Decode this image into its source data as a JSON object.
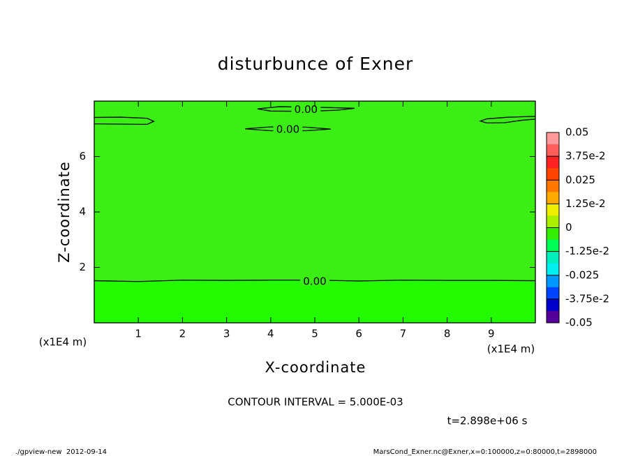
{
  "chart_data": {
    "type": "contour",
    "title": "disturbunce of Exner",
    "x_label": "X-coordinate",
    "y_label": "Z-coordinate",
    "x_unit": "(x1E4 m)",
    "y_unit": "(x1E4 m)",
    "xlim": [
      0,
      10
    ],
    "ylim": [
      0,
      8
    ],
    "xticks": [
      1,
      2,
      3,
      4,
      5,
      6,
      7,
      8,
      9
    ],
    "yticks": [
      2,
      4,
      6
    ],
    "background_color": "#3bef14",
    "contours": [
      {
        "level": 0,
        "label": "0.00",
        "fill_below": "#22fb00",
        "x": [
          0,
          1,
          2,
          3,
          4,
          5,
          6,
          7,
          8,
          9,
          10
        ],
        "y": [
          1.52,
          1.49,
          1.54,
          1.53,
          1.54,
          1.54,
          1.51,
          1.54,
          1.53,
          1.53,
          1.52
        ]
      },
      {
        "level": 0,
        "x": [
          0,
          0.6,
          1.2,
          1.35,
          1.2,
          0.6,
          0
        ],
        "y": [
          7.41,
          7.42,
          7.38,
          7.27,
          7.16,
          7.17,
          7.18
        ]
      },
      {
        "level": 0,
        "label": "0.00",
        "x": [
          3.7,
          4.2,
          5.0,
          5.9,
          5.5,
          4.8,
          4.0,
          3.7
        ],
        "y": [
          7.72,
          7.8,
          7.78,
          7.74,
          7.67,
          7.63,
          7.64,
          7.72
        ]
      },
      {
        "level": 0,
        "label": "0.00",
        "x": [
          3.42,
          4.0,
          4.8,
          5.36,
          4.8,
          4.0,
          3.42
        ],
        "y": [
          7.0,
          7.07,
          7.06,
          6.99,
          6.93,
          6.93,
          7.0
        ]
      },
      {
        "level": 0,
        "x": [
          10,
          9.4,
          8.9,
          8.75,
          8.9,
          9.3,
          9.7,
          10
        ],
        "y": [
          7.45,
          7.42,
          7.36,
          7.28,
          7.21,
          7.22,
          7.31,
          7.35
        ]
      }
    ],
    "colorbar": {
      "zlim": [
        -0.05,
        0.05
      ],
      "ticks": [
        0.05,
        {
          "value": 0.0375,
          "label": "3.75e-2"
        },
        0.025,
        {
          "value": 0.0125,
          "label": "1.25e-2"
        },
        0,
        {
          "value": -0.0125,
          "label": "-1.25e-2"
        },
        -0.025,
        {
          "value": -0.0375,
          "label": "-3.75e-2"
        },
        -0.05
      ],
      "colors": [
        "#ff9999",
        "#ff5c5c",
        "#ff2222",
        "#ff4400",
        "#ff7700",
        "#ffaa00",
        "#eeee00",
        "#aaee00",
        "#33ee00",
        "#00ff55",
        "#00eebb",
        "#00eeee",
        "#0099ff",
        "#0044ff",
        "#0000cc",
        "#550099"
      ]
    },
    "annotation": "CONTOUR INTERVAL = 5.000E-03",
    "time_label": "t=2.898e+06 s",
    "footer_left": "./gpview-new  2012-09-14",
    "footer_right": "MarsCond_Exner.nc@Exner,x=0:100000,z=0:80000,t=2898000"
  }
}
